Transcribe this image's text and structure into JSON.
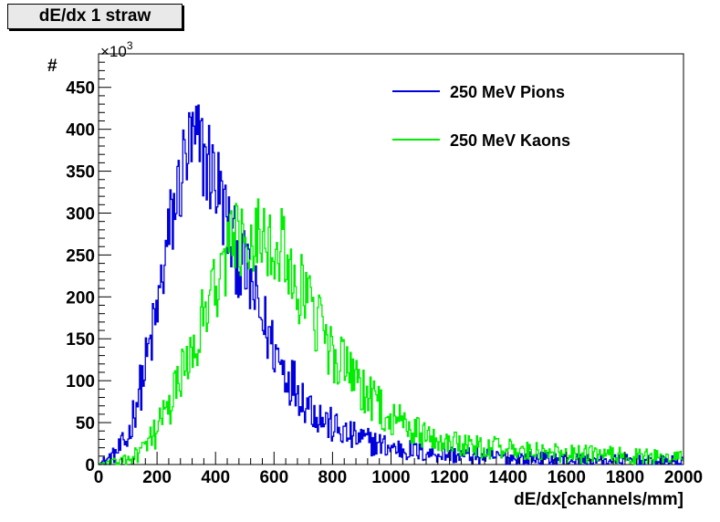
{
  "chart_data": {
    "type": "line",
    "title": "dE/dx 1 straw",
    "xlabel": "dE/dx[channels/mm]",
    "ylabel": "#",
    "y_multiplier": "×10",
    "y_multiplier_exp": "3",
    "xlim": [
      0,
      2000
    ],
    "ylim": [
      0,
      490
    ],
    "x_ticks": [
      0,
      200,
      400,
      600,
      800,
      1000,
      1200,
      1400,
      1600,
      1800,
      2000
    ],
    "y_ticks": [
      0,
      50,
      100,
      150,
      200,
      250,
      300,
      350,
      400,
      450
    ],
    "legend_position": "top-right",
    "series": [
      {
        "name": "250 MeV Pions",
        "color": "#0000dd",
        "x": [
          0,
          50,
          100,
          125,
          150,
          175,
          200,
          225,
          250,
          275,
          300,
          325,
          350,
          375,
          400,
          425,
          450,
          475,
          500,
          525,
          550,
          575,
          600,
          625,
          650,
          675,
          700,
          725,
          750,
          775,
          800,
          850,
          900,
          950,
          1000,
          1100,
          1200,
          1300,
          1400,
          1500,
          1600,
          1700,
          1800,
          1900,
          2000
        ],
        "values": [
          0,
          10,
          30,
          70,
          100,
          140,
          180,
          240,
          290,
          330,
          370,
          380,
          375,
          360,
          340,
          310,
          270,
          250,
          230,
          210,
          180,
          160,
          140,
          120,
          105,
          95,
          80,
          70,
          60,
          52,
          45,
          35,
          30,
          25,
          20,
          15,
          12,
          10,
          8,
          7,
          6,
          5,
          5,
          4,
          4
        ]
      },
      {
        "name": "250 MeV Kaons",
        "color": "#00ee00",
        "x": [
          0,
          100,
          150,
          200,
          250,
          300,
          350,
          400,
          425,
          450,
          475,
          500,
          525,
          550,
          575,
          600,
          625,
          650,
          675,
          700,
          725,
          750,
          775,
          800,
          850,
          900,
          950,
          1000,
          1050,
          1100,
          1200,
          1300,
          1400,
          1500,
          1600,
          1700,
          1800,
          1900,
          2000
        ],
        "values": [
          0,
          5,
          15,
          40,
          75,
          120,
          170,
          215,
          245,
          260,
          270,
          275,
          280,
          280,
          275,
          270,
          255,
          240,
          220,
          200,
          185,
          165,
          150,
          135,
          110,
          90,
          70,
          55,
          45,
          38,
          28,
          22,
          18,
          15,
          13,
          12,
          10,
          9,
          8
        ]
      }
    ]
  }
}
